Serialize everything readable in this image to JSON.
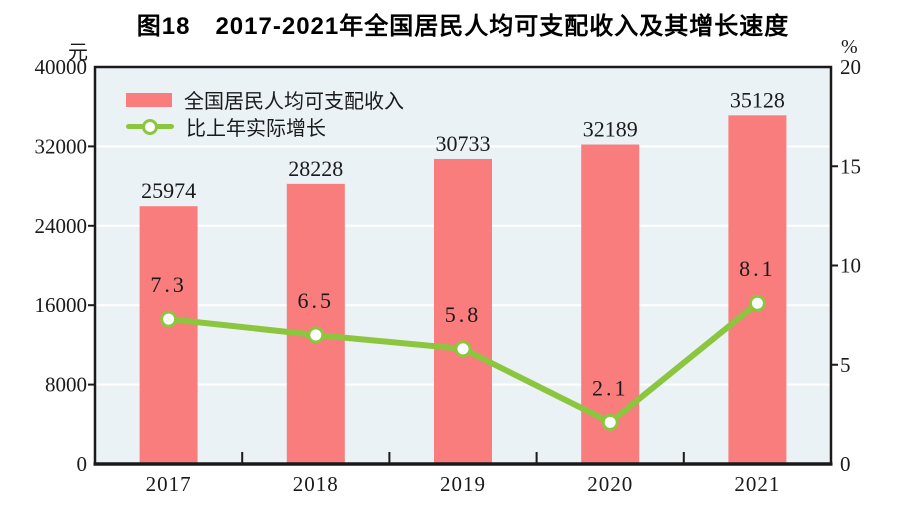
{
  "chart_data": {
    "type": "bar+line",
    "title": "图18　2017-2021年全国居民人均可支配收入及其增长速度",
    "categories": [
      "2017",
      "2018",
      "2019",
      "2020",
      "2021"
    ],
    "series": [
      {
        "name": "全国居民人均可支配收入",
        "type": "bar",
        "axis": "left",
        "color": "#F97D7C",
        "values": [
          25974,
          28228,
          30733,
          32189,
          35128
        ],
        "labels": [
          "25974",
          "28228",
          "30733",
          "32189",
          "35128"
        ]
      },
      {
        "name": "比上年实际增长",
        "type": "line",
        "axis": "right",
        "color": "#8CC63F",
        "marker": "white-filled-circle",
        "values": [
          7.3,
          6.5,
          5.8,
          2.1,
          8.1
        ],
        "labels": [
          "7.3",
          "6.5",
          "5.8",
          "2.1",
          "8.1"
        ]
      }
    ],
    "left_axis": {
      "unit": "元",
      "min": 0,
      "max": 40000,
      "step": 8000,
      "tick_labels": [
        "0",
        "8000",
        "16000",
        "24000",
        "32000",
        "40000"
      ]
    },
    "right_axis": {
      "unit": "%",
      "min": 0,
      "max": 20,
      "step": 5,
      "tick_labels": [
        "0",
        "5",
        "10",
        "15",
        "20"
      ]
    },
    "grid": "horizontal gridlines at left-axis ticks",
    "legend_position": "top-left inside plot",
    "colors": {
      "bar": "#F97D7C",
      "line": "#8CC63F",
      "marker_fill": "#FFFFFF",
      "plot_background": "#EAF2F6",
      "gridline": "#FFFFFF",
      "axis": "#1A1A1A",
      "text": "#1A1A1A"
    }
  }
}
